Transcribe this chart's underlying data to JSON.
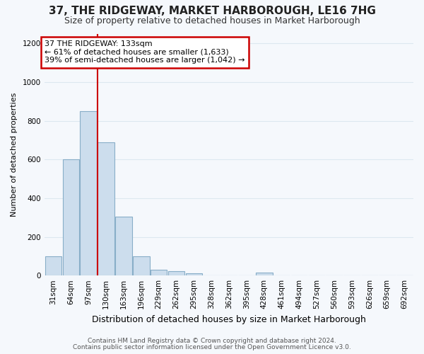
{
  "title": "37, THE RIDGEWAY, MARKET HARBOROUGH, LE16 7HG",
  "subtitle": "Size of property relative to detached houses in Market Harborough",
  "xlabel": "Distribution of detached houses by size in Market Harborough",
  "ylabel": "Number of detached properties",
  "categories": [
    "31sqm",
    "64sqm",
    "97sqm",
    "130sqm",
    "163sqm",
    "196sqm",
    "229sqm",
    "262sqm",
    "295sqm",
    "328sqm",
    "362sqm",
    "395sqm",
    "428sqm",
    "461sqm",
    "494sqm",
    "527sqm",
    "560sqm",
    "593sqm",
    "626sqm",
    "659sqm",
    "692sqm"
  ],
  "values": [
    100,
    600,
    850,
    690,
    305,
    100,
    30,
    22,
    10,
    0,
    0,
    0,
    15,
    0,
    0,
    0,
    0,
    0,
    0,
    0,
    0
  ],
  "bar_color": "#ccdded",
  "bar_edge_color": "#88aec8",
  "vline_color": "#cc0000",
  "vline_pos": 2.5,
  "ylim_max": 1250,
  "yticks": [
    0,
    200,
    400,
    600,
    800,
    1000,
    1200
  ],
  "ann_title": "37 THE RIDGEWAY: 133sqm",
  "ann_line1": "← 61% of detached houses are smaller (1,633)",
  "ann_line2": "39% of semi-detached houses are larger (1,042) →",
  "ann_box_edgecolor": "#cc0000",
  "footer1": "Contains HM Land Registry data © Crown copyright and database right 2024.",
  "footer2": "Contains public sector information licensed under the Open Government Licence v3.0.",
  "bg_color": "#f5f8fc",
  "grid_color": "#dde8f0",
  "title_fontsize": 11,
  "subtitle_fontsize": 9,
  "axis_label_fontsize": 9,
  "tick_fontsize": 7.5,
  "ylabel_fontsize": 8
}
